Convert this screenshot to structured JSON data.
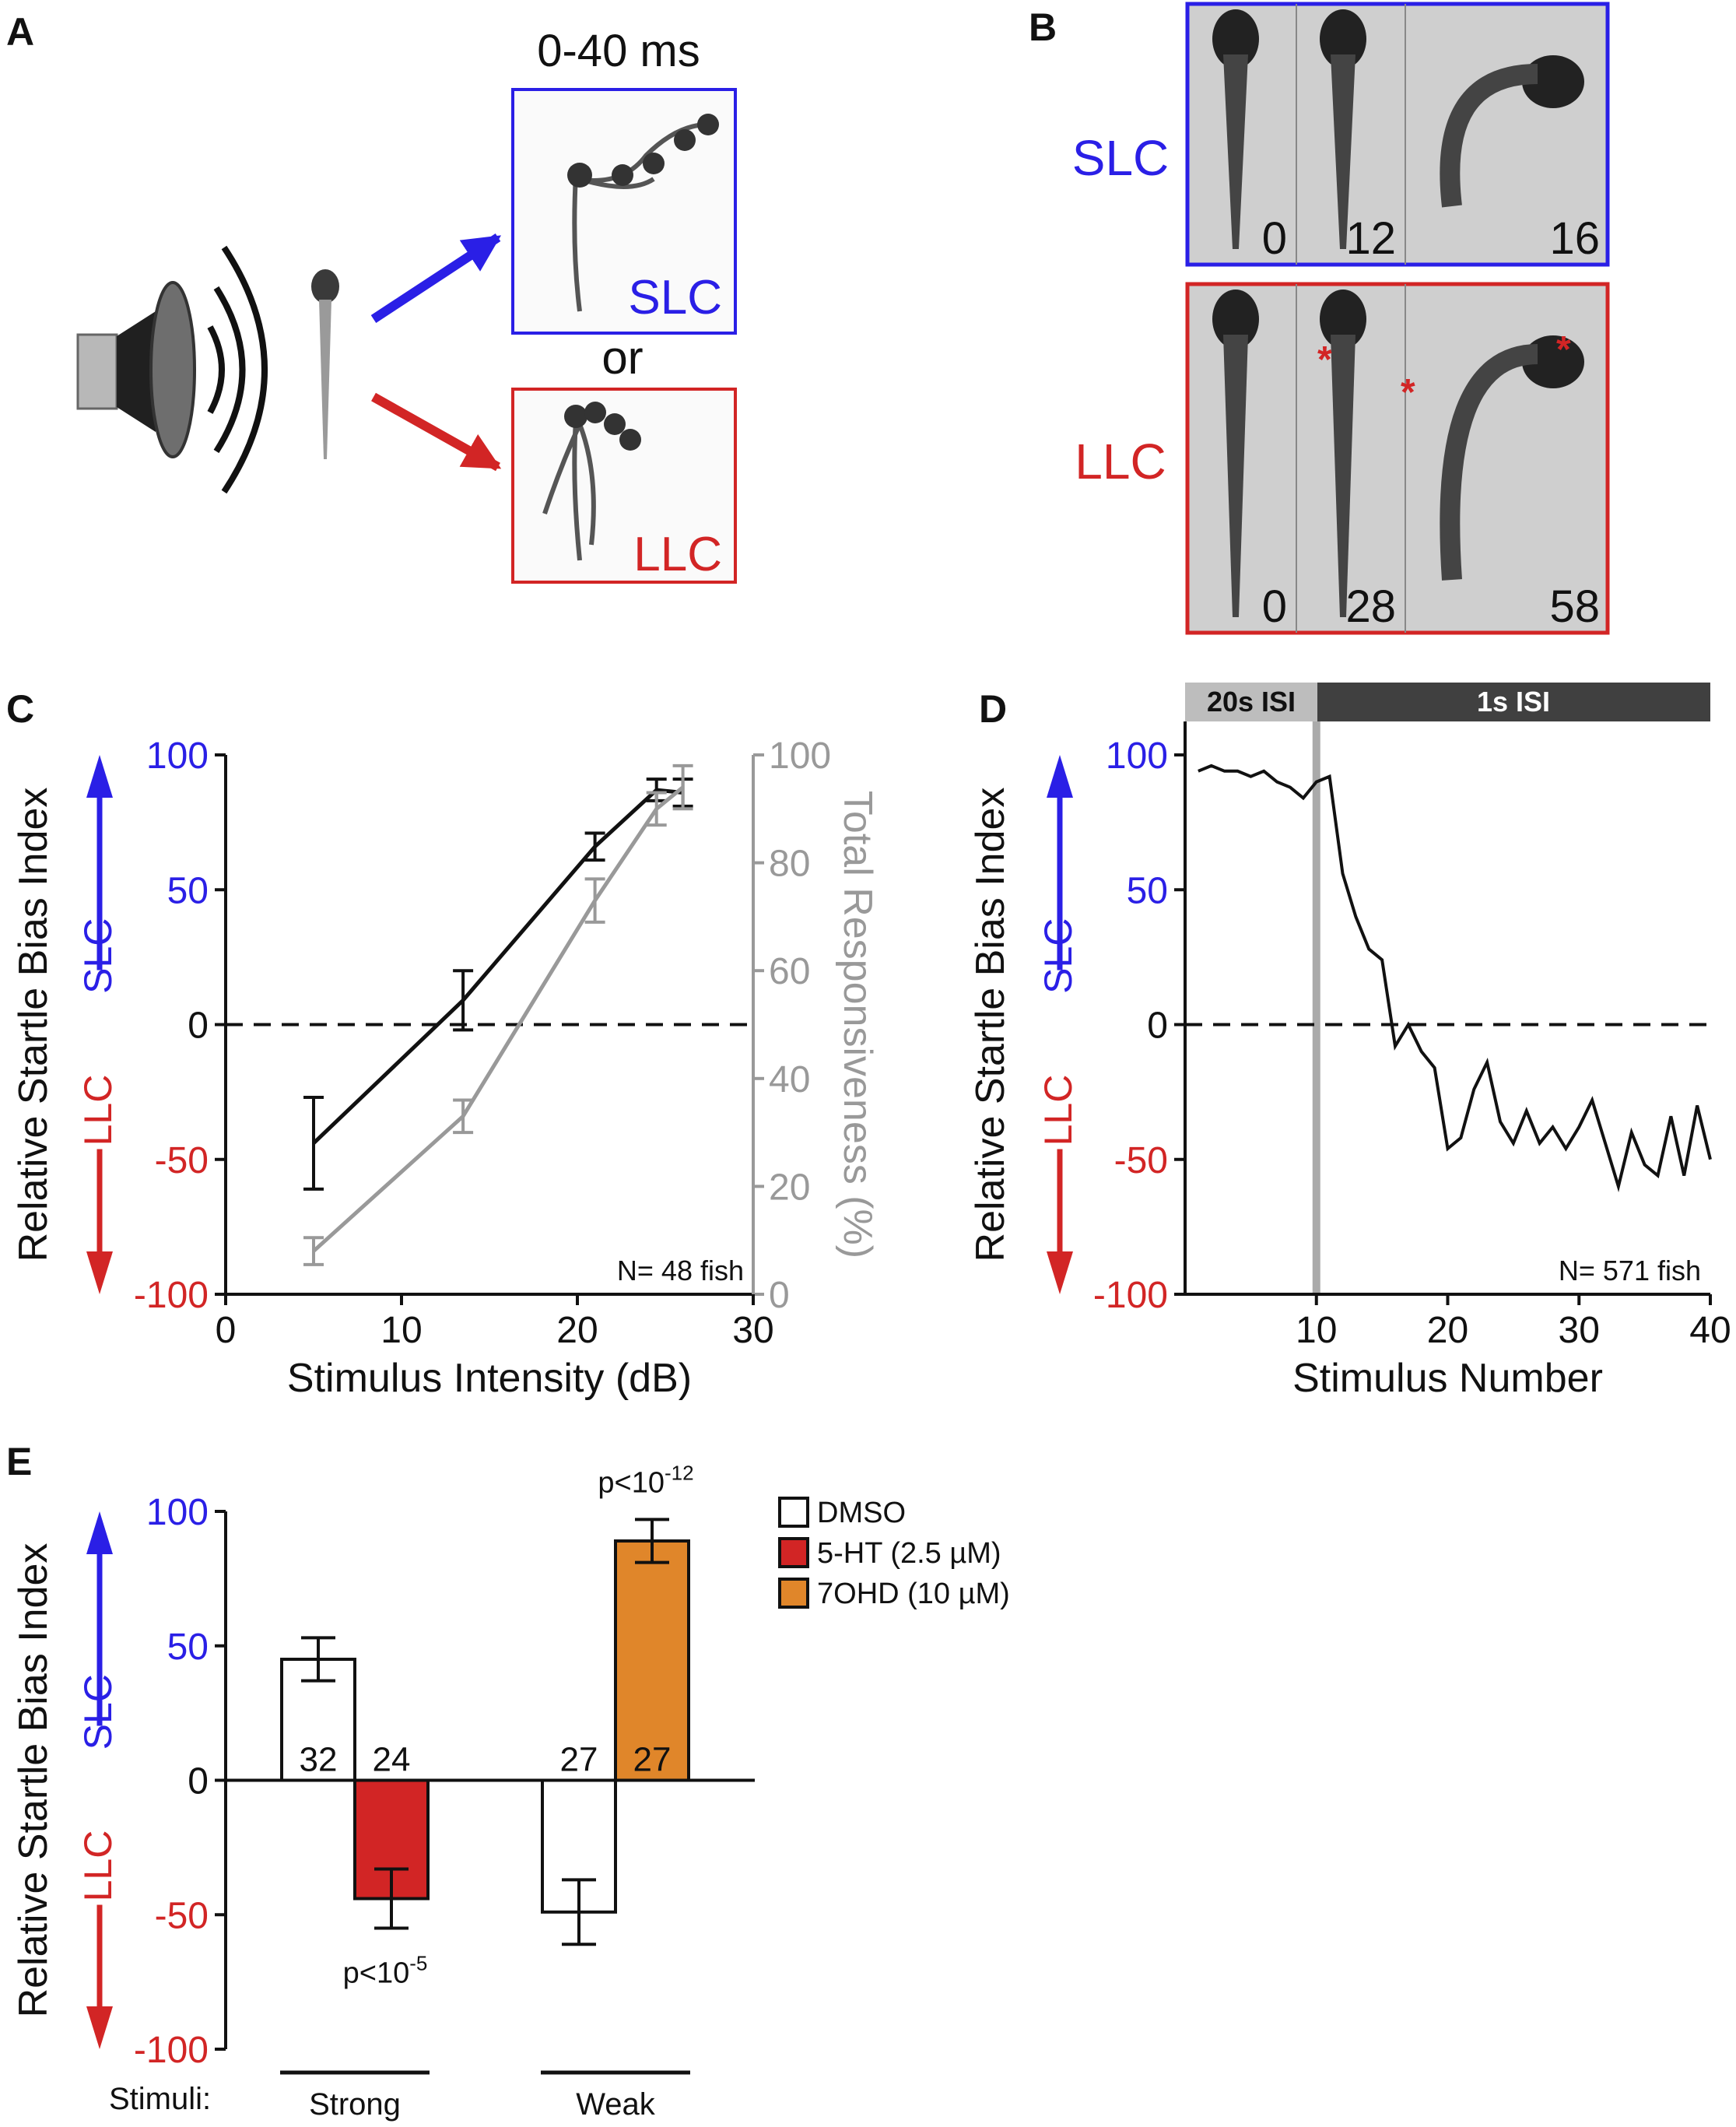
{
  "colors": {
    "blue": "#2a1fe6",
    "red": "#d22525",
    "black": "#111111",
    "gray": "#999999",
    "dark_bar": "#404040",
    "light_bar": "#bdbdbd",
    "orange": "#e0862a",
    "fish_bg": "#cfcfcf"
  },
  "panels": {
    "A": {
      "letter": "A",
      "time_label": "0-40 ms",
      "slc_label": "SLC",
      "or_label": "or",
      "llc_label": "LLC"
    },
    "B": {
      "letter": "B",
      "slc_label": "SLC",
      "llc_label": "LLC",
      "slc_frames": [
        "0",
        "12",
        "16"
      ],
      "llc_frames": [
        "0",
        "28",
        "58"
      ]
    },
    "C": {
      "letter": "C"
    },
    "D": {
      "letter": "D",
      "isi_left": "20s ISI",
      "isi_right": "1s ISI"
    },
    "E": {
      "letter": "E",
      "stimuli_label": "Stimuli:"
    }
  },
  "chart_data": [
    {
      "panel": "C",
      "type": "line",
      "xlabel": "Stimulus Intensity (dB)",
      "ylabel": "Relative Startle Bias Index",
      "y2label": "Total Responsiveness (%)",
      "xlim": [
        0,
        30
      ],
      "ylim": [
        -100,
        100
      ],
      "y2lim": [
        0,
        100
      ],
      "xticks": [
        "0",
        "10",
        "20",
        "30"
      ],
      "yticks": [
        "100",
        "50",
        "0",
        "-50",
        "-100"
      ],
      "y2ticks": [
        "100",
        "80",
        "60",
        "40",
        "20",
        "0"
      ],
      "side_slc": "SLC",
      "side_llc": "LLC",
      "annotation": "N= 48 fish",
      "series": [
        {
          "axis": "left",
          "color": "black",
          "x": [
            5,
            13.5,
            21,
            24.5,
            26
          ],
          "y": [
            -44,
            9,
            66,
            87,
            86
          ],
          "err": [
            17,
            11,
            5,
            4,
            5
          ]
        },
        {
          "axis": "right",
          "color": "gray",
          "x": [
            5,
            13.5,
            21,
            24.5,
            26
          ],
          "y": [
            8,
            33,
            73,
            90,
            94
          ],
          "err": [
            2.5,
            3,
            4,
            3,
            4
          ]
        }
      ]
    },
    {
      "panel": "D",
      "type": "line",
      "xlabel": "Stimulus Number",
      "ylabel": "Relative Startle Bias Index",
      "xlim": [
        0,
        40
      ],
      "ylim": [
        -100,
        100
      ],
      "xticks": [
        "10",
        "20",
        "30",
        "40"
      ],
      "yticks": [
        "100",
        "50",
        "0",
        "-50",
        "-100"
      ],
      "side_slc": "SLC",
      "side_llc": "LLC",
      "annotation": "N= 571 fish",
      "vline_x": 10,
      "x": [
        1,
        2,
        3,
        4,
        5,
        6,
        7,
        8,
        9,
        10,
        11,
        12,
        13,
        14,
        15,
        16,
        17,
        18,
        19,
        20,
        21,
        22,
        23,
        24,
        25,
        26,
        27,
        28,
        29,
        30,
        31,
        32,
        33,
        34,
        35,
        36,
        37,
        38,
        39,
        40
      ],
      "y": [
        94,
        96,
        94,
        94,
        92,
        94,
        90,
        88,
        84,
        90,
        92,
        56,
        40,
        28,
        24,
        -8,
        0,
        -10,
        -16,
        -46,
        -42,
        -24,
        -14,
        -36,
        -44,
        -32,
        -44,
        -38,
        -46,
        -38,
        -28,
        -44,
        -60,
        -40,
        -52,
        -56,
        -34,
        -56,
        -30,
        -50
      ]
    },
    {
      "panel": "E",
      "type": "bar",
      "ylabel": "Relative Startle Bias Index",
      "ylim": [
        -100,
        100
      ],
      "yticks": [
        "100",
        "50",
        "0",
        "-50",
        "-100"
      ],
      "side_slc": "SLC",
      "side_llc": "LLC",
      "legend": [
        {
          "label": "DMSO",
          "color": "white"
        },
        {
          "label": "5-HT (2.5 µM)",
          "color": "red"
        },
        {
          "label": "7OHD (10 µM)",
          "color": "orange"
        }
      ],
      "groups": [
        {
          "label": "Strong",
          "bars": [
            {
              "value": 45,
              "err": 8,
              "n": "32",
              "color": "white"
            },
            {
              "value": -44,
              "err": 11,
              "n": "24",
              "color": "red",
              "p": "p<10",
              "p_exp": "-5"
            }
          ]
        },
        {
          "label": "Weak",
          "bars": [
            {
              "value": -49,
              "err": 12,
              "n": "27",
              "color": "white"
            },
            {
              "value": 89,
              "err": 8,
              "n": "27",
              "color": "orange",
              "p": "p<10",
              "p_exp": "-12"
            }
          ]
        }
      ]
    }
  ]
}
